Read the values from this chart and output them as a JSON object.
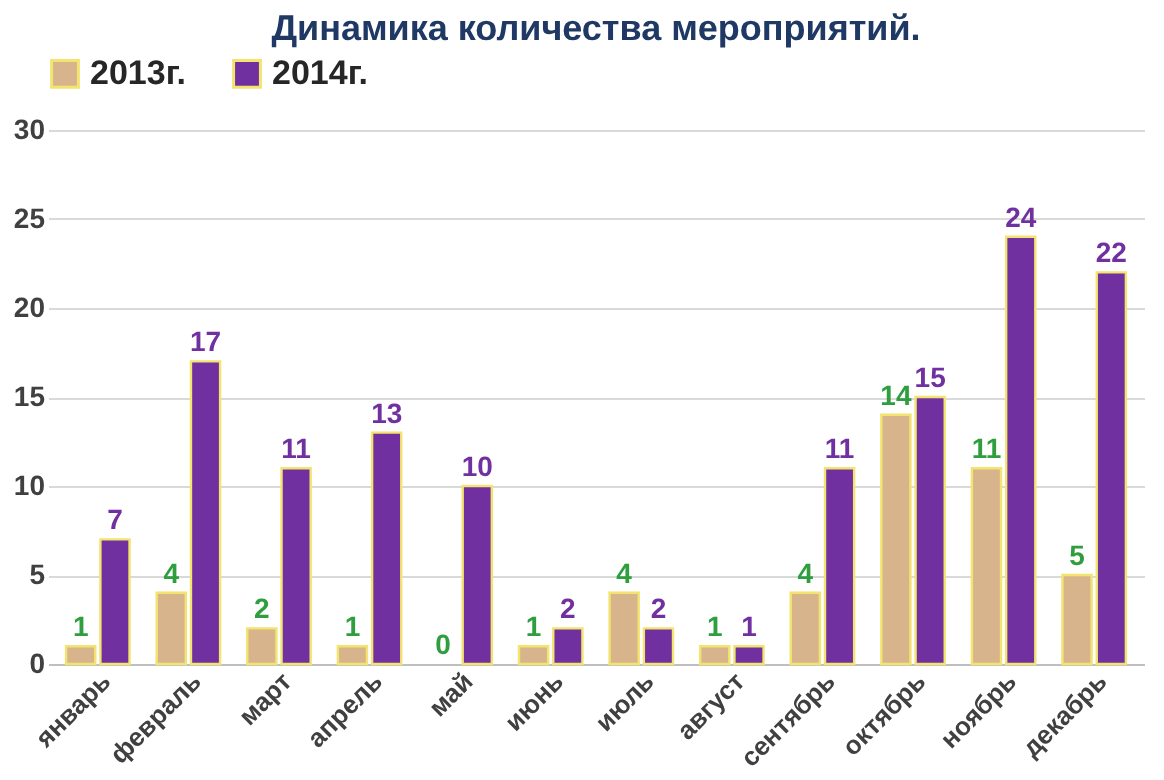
{
  "chart_data": {
    "type": "bar",
    "title": "Динамика количества мероприятий.",
    "categories": [
      "январь",
      "февраль",
      "март",
      "апрель",
      "май",
      "июнь",
      "июль",
      "август",
      "сентябрь",
      "октябрь",
      "ноябрь",
      "декабрь"
    ],
    "series": [
      {
        "name": "2013г.",
        "color": "#d8b48c",
        "values": [
          1,
          4,
          2,
          1,
          0,
          1,
          4,
          1,
          4,
          14,
          11,
          5
        ]
      },
      {
        "name": "2014г.",
        "color": "#7030a0",
        "values": [
          7,
          17,
          11,
          13,
          10,
          2,
          2,
          1,
          11,
          15,
          24,
          22
        ]
      }
    ],
    "ylim": [
      0,
      30
    ],
    "yticks": [
      0,
      5,
      10,
      15,
      20,
      25,
      30
    ],
    "grid": "y",
    "legend": "top",
    "data_labels": true
  }
}
